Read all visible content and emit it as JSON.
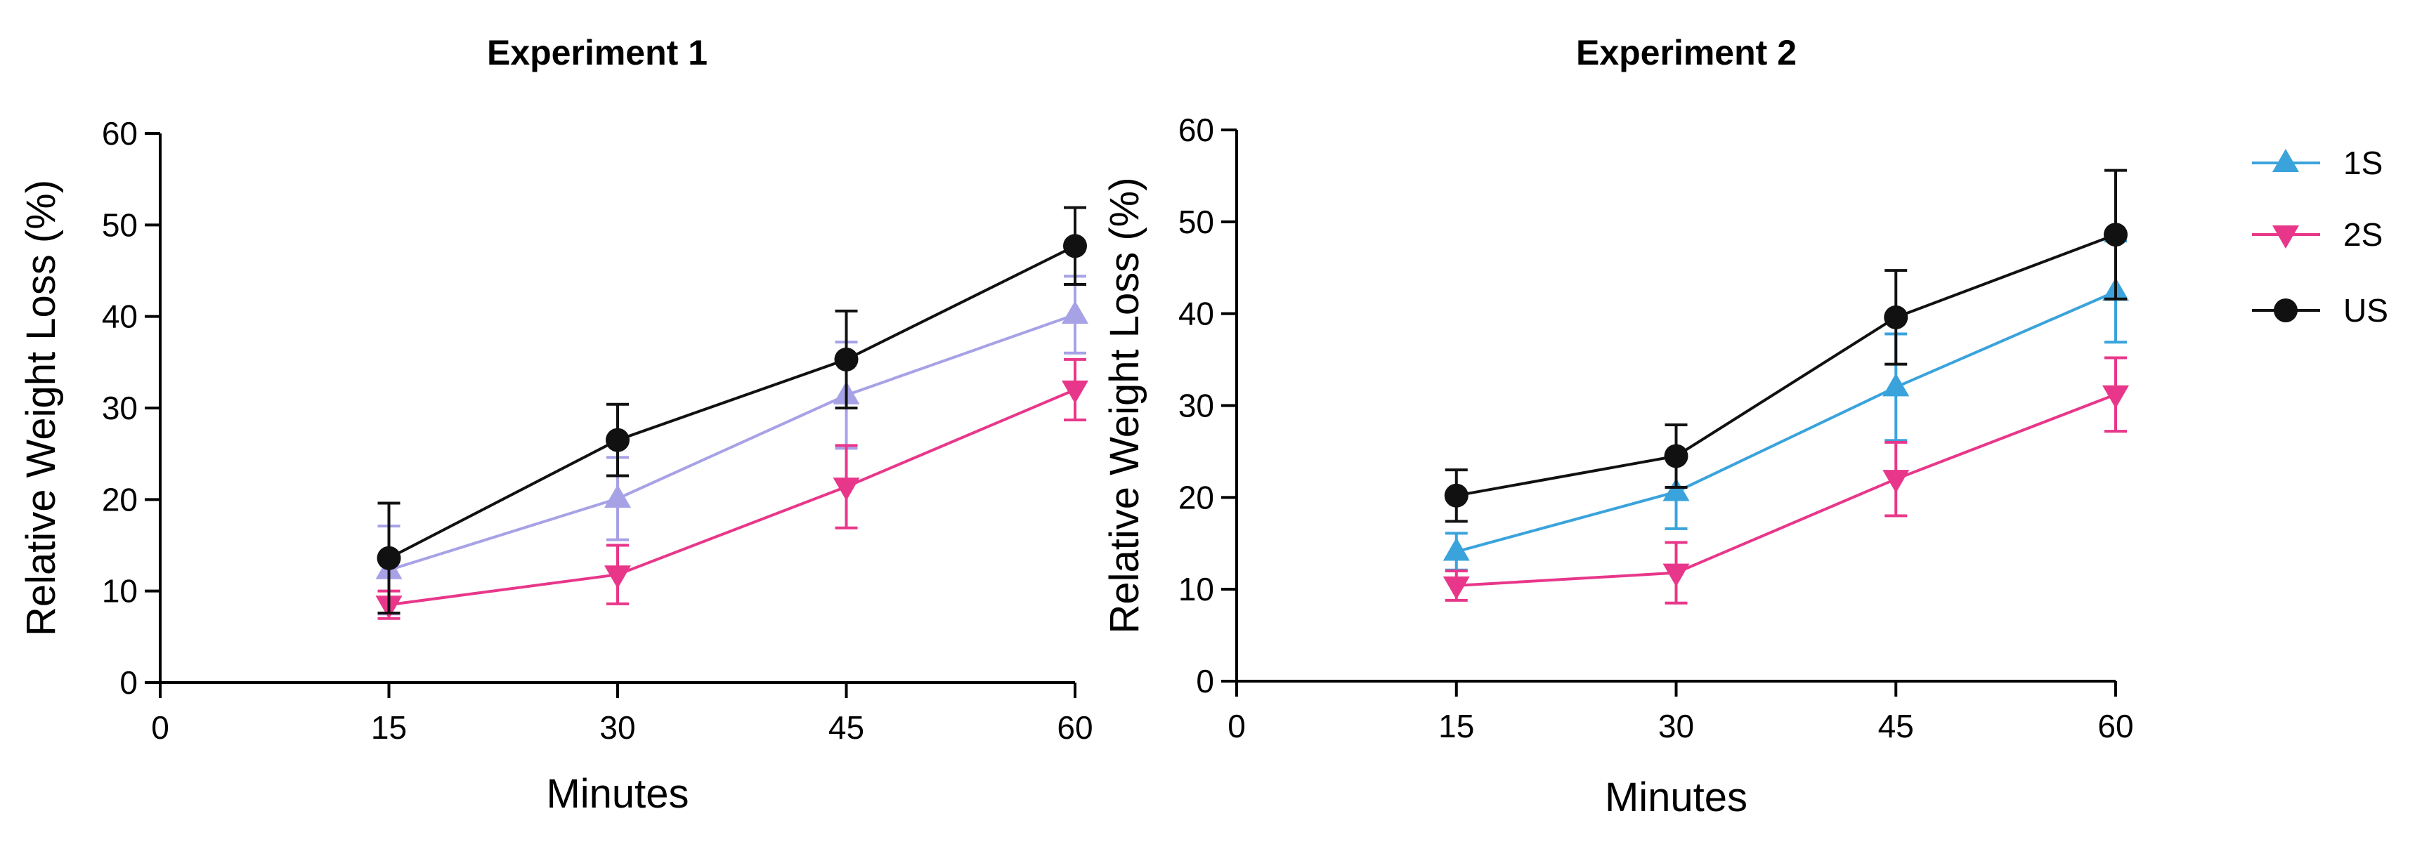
{
  "colors": {
    "1S_panel1": "#a7a2e6",
    "1S_panel2": "#3aa3dc",
    "2S": "#e8378a",
    "US": "#111111",
    "axis": "#000000"
  },
  "legend": {
    "items": [
      {
        "key": "1S",
        "label": "1S",
        "marker": "triangle-up"
      },
      {
        "key": "2S",
        "label": "2S",
        "marker": "triangle-down"
      },
      {
        "key": "US",
        "label": "US",
        "marker": "circle"
      }
    ]
  },
  "chart_data": [
    {
      "type": "line",
      "title": "Experiment 1",
      "xlabel": "Minutes",
      "ylabel": "Relative  Weight Loss (%)",
      "xlim": [
        0,
        60
      ],
      "ylim": [
        0,
        60
      ],
      "xticks": [
        0,
        15,
        30,
        45,
        60
      ],
      "yticks": [
        0,
        10,
        20,
        30,
        40,
        50,
        60
      ],
      "x": [
        15,
        30,
        45,
        60
      ],
      "series": [
        {
          "name": "1S",
          "marker": "triangle-up",
          "values": [
            12.3,
            20.1,
            31.4,
            40.2
          ],
          "errors": [
            4.8,
            4.5,
            5.8,
            4.2
          ]
        },
        {
          "name": "2S",
          "marker": "triangle-down",
          "values": [
            8.5,
            11.8,
            21.4,
            32.0
          ],
          "errors": [
            1.5,
            3.2,
            4.5,
            3.3
          ]
        },
        {
          "name": "US",
          "marker": "circle",
          "values": [
            13.6,
            26.5,
            35.3,
            47.7
          ],
          "errors": [
            6.0,
            3.9,
            5.3,
            4.2
          ]
        }
      ]
    },
    {
      "type": "line",
      "title": "Experiment 2",
      "xlabel": "Minutes",
      "ylabel": "Relative  Weight Loss (%)",
      "xlim": [
        0,
        60
      ],
      "ylim": [
        0,
        60
      ],
      "xticks": [
        0,
        15,
        30,
        45,
        60
      ],
      "yticks": [
        0,
        10,
        20,
        30,
        40,
        50,
        60
      ],
      "x": [
        15,
        30,
        45,
        60
      ],
      "series": [
        {
          "name": "1S",
          "marker": "triangle-up",
          "values": [
            14.1,
            20.6,
            32.0,
            42.4
          ],
          "errors": [
            2.0,
            4.0,
            5.8,
            5.5
          ]
        },
        {
          "name": "2S",
          "marker": "triangle-down",
          "values": [
            10.4,
            11.8,
            22.0,
            31.2
          ],
          "errors": [
            1.6,
            3.3,
            4.0,
            4.0
          ]
        },
        {
          "name": "US",
          "marker": "circle",
          "values": [
            20.2,
            24.5,
            39.6,
            48.6
          ],
          "errors": [
            2.8,
            3.4,
            5.1,
            7.0
          ]
        }
      ]
    }
  ]
}
